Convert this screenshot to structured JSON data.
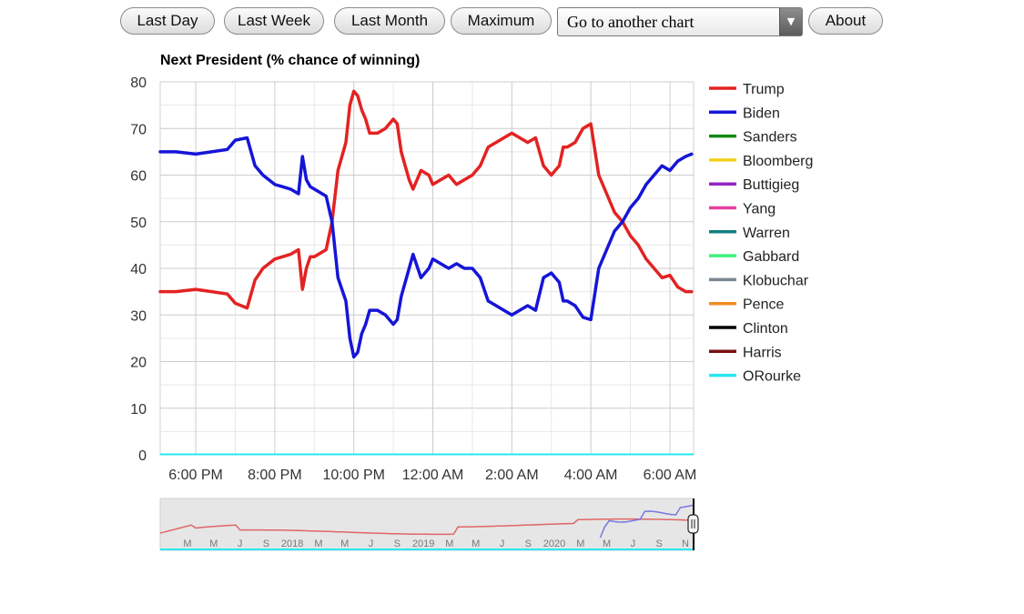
{
  "toolbar": {
    "buttons": [
      "Last Day",
      "Last Week",
      "Last Month",
      "Maximum"
    ],
    "select_value": "Go to another chart",
    "about_label": "About"
  },
  "chart_data": {
    "type": "line",
    "title": "Next President (% chance of winning)",
    "xlabel": "",
    "ylabel": "",
    "ylim": [
      0,
      80
    ],
    "yticks": [
      0,
      10,
      20,
      30,
      40,
      50,
      60,
      70,
      80
    ],
    "x_tick_labels": [
      "6:00 PM",
      "8:00 PM",
      "10:00 PM",
      "12:00 AM",
      "2:00 AM",
      "4:00 AM",
      "6:00 AM"
    ],
    "x_range_hours": [
      17.1,
      30.6
    ],
    "grid": true,
    "legend_position": "right",
    "series": [
      {
        "name": "Trump",
        "color": "#e32222",
        "x": [
          17.1,
          17.5,
          18.0,
          18.4,
          18.8,
          19.0,
          19.3,
          19.5,
          19.7,
          20.0,
          20.2,
          20.4,
          20.6,
          20.7,
          20.8,
          20.9,
          21.0,
          21.3,
          21.45,
          21.6,
          21.8,
          21.9,
          22.0,
          22.1,
          22.2,
          22.3,
          22.4,
          22.6,
          22.8,
          23.0,
          23.1,
          23.2,
          23.4,
          23.5,
          23.7,
          23.9,
          24.0,
          24.2,
          24.4,
          24.6,
          24.8,
          25.0,
          25.2,
          25.4,
          25.6,
          25.8,
          26.0,
          26.2,
          26.4,
          26.6,
          26.8,
          27.0,
          27.2,
          27.3,
          27.4,
          27.6,
          27.8,
          28.0,
          28.2,
          28.4,
          28.6,
          28.8,
          29.0,
          29.2,
          29.4,
          29.6,
          29.8,
          30.0,
          30.2,
          30.4,
          30.55
        ],
        "values": [
          35,
          35,
          35.5,
          35,
          34.5,
          32.5,
          31.5,
          37.5,
          40,
          42,
          42.5,
          43,
          44,
          35.5,
          40,
          42.5,
          42.5,
          44,
          50,
          61,
          67,
          75,
          78,
          77,
          74,
          72,
          69,
          69,
          70,
          72,
          71,
          65,
          59,
          57,
          61,
          60,
          58,
          59,
          60,
          58,
          59,
          60,
          62,
          66,
          67,
          68,
          69,
          68,
          67,
          68,
          62,
          60,
          62,
          66,
          66,
          67,
          70,
          71,
          60,
          56,
          52,
          50,
          47,
          45,
          42,
          40,
          38,
          38.5,
          36,
          35,
          35
        ]
      },
      {
        "name": "Biden",
        "color": "#1515d8",
        "x": [
          17.1,
          17.5,
          18.0,
          18.4,
          18.8,
          19.0,
          19.3,
          19.5,
          19.7,
          20.0,
          20.2,
          20.4,
          20.6,
          20.7,
          20.8,
          20.9,
          21.0,
          21.3,
          21.45,
          21.6,
          21.8,
          21.9,
          22.0,
          22.1,
          22.2,
          22.3,
          22.4,
          22.6,
          22.8,
          23.0,
          23.1,
          23.2,
          23.4,
          23.5,
          23.7,
          23.9,
          24.0,
          24.2,
          24.4,
          24.6,
          24.8,
          25.0,
          25.2,
          25.4,
          25.6,
          25.8,
          26.0,
          26.2,
          26.4,
          26.6,
          26.8,
          27.0,
          27.2,
          27.3,
          27.4,
          27.6,
          27.8,
          28.0,
          28.2,
          28.4,
          28.6,
          28.8,
          29.0,
          29.2,
          29.4,
          29.6,
          29.8,
          30.0,
          30.2,
          30.4,
          30.55
        ],
        "values": [
          65,
          65,
          64.5,
          65,
          65.5,
          67.5,
          68,
          62,
          60,
          58,
          57.5,
          57,
          56,
          64,
          59,
          57.5,
          57,
          55.5,
          50,
          38,
          33,
          25,
          21,
          22,
          26,
          28,
          31,
          31,
          30,
          28,
          29,
          34,
          40,
          43,
          38,
          40,
          42,
          41,
          40,
          41,
          40,
          40,
          38,
          33,
          32,
          31,
          30,
          31,
          32,
          31,
          38,
          39,
          37,
          33,
          33,
          32,
          29.5,
          29,
          40,
          44,
          48,
          50,
          53,
          55,
          58,
          60,
          62,
          61,
          63,
          64,
          64.5
        ]
      },
      {
        "name": "Sanders",
        "color": "#138a13",
        "values": [
          0
        ]
      },
      {
        "name": "Bloomberg",
        "color": "#f0d21e",
        "values": [
          0
        ]
      },
      {
        "name": "Buttigieg",
        "color": "#9225c2",
        "values": [
          0
        ]
      },
      {
        "name": "Yang",
        "color": "#e63fa0",
        "values": [
          0
        ]
      },
      {
        "name": "Warren",
        "color": "#138080",
        "values": [
          0
        ]
      },
      {
        "name": "Gabbard",
        "color": "#3ef07c",
        "values": [
          0
        ]
      },
      {
        "name": "Klobuchar",
        "color": "#7c8692",
        "values": [
          0
        ]
      },
      {
        "name": "Pence",
        "color": "#f08d25",
        "values": [
          0
        ]
      },
      {
        "name": "Clinton",
        "color": "#000000",
        "values": [
          0
        ]
      },
      {
        "name": "Harris",
        "color": "#7a0f0f",
        "values": [
          0
        ]
      },
      {
        "name": "ORourke",
        "color": "#28e8f2",
        "values": [
          0
        ]
      }
    ],
    "navigator": {
      "labels": [
        "M",
        "M",
        "J",
        "S",
        "2018",
        "M",
        "M",
        "J",
        "S",
        "2019",
        "M",
        "M",
        "J",
        "S",
        "2020",
        "M",
        "M",
        "J",
        "S",
        "N"
      ]
    }
  }
}
